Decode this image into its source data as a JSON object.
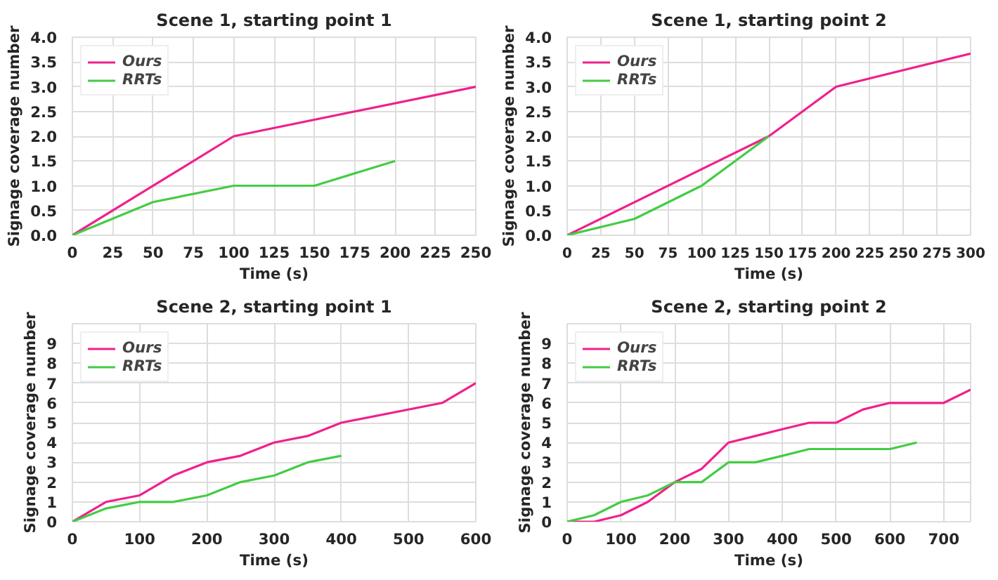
{
  "chart_data": [
    {
      "type": "line",
      "title": "Scene 1, starting point 1",
      "xlabel": "Time (s)",
      "ylabel": "Signage coverage number",
      "xlim": [
        0,
        250
      ],
      "xticks": [
        0,
        25,
        50,
        75,
        100,
        125,
        150,
        175,
        200,
        225,
        250
      ],
      "ylim": [
        0,
        4
      ],
      "yticks": [
        {
          "value": 0,
          "label": "0.0"
        },
        {
          "value": 0.5,
          "label": "0.5"
        },
        {
          "value": 1,
          "label": "1.0"
        },
        {
          "value": 1.5,
          "label": "1.5"
        },
        {
          "value": 2,
          "label": "2.0"
        },
        {
          "value": 2.5,
          "label": "2.5"
        },
        {
          "value": 3,
          "label": "3.0"
        },
        {
          "value": 3.5,
          "label": "3.5"
        },
        {
          "value": 4,
          "label": "4.0"
        }
      ],
      "grid": true,
      "legend": "top left",
      "series": [
        {
          "name": "Ours",
          "color": "#f0208c",
          "x": [
            0,
            100,
            250
          ],
          "values": [
            0,
            2,
            3
          ]
        },
        {
          "name": "RRTs",
          "color": "#44cc44",
          "x": [
            0,
            50,
            100,
            150,
            200
          ],
          "values": [
            0,
            0.67,
            1,
            1,
            1.5
          ]
        }
      ]
    },
    {
      "type": "line",
      "title": "Scene 1, starting point 2",
      "xlabel": "Time (s)",
      "ylabel": "Signage coverage number",
      "xlim": [
        0,
        300
      ],
      "xticks": [
        0,
        25,
        50,
        75,
        100,
        125,
        150,
        175,
        200,
        225,
        250,
        275,
        300
      ],
      "ylim": [
        0,
        4
      ],
      "yticks": [
        {
          "value": 0,
          "label": "0.0"
        },
        {
          "value": 0.5,
          "label": "0.5"
        },
        {
          "value": 1,
          "label": "1.0"
        },
        {
          "value": 1.5,
          "label": "1.5"
        },
        {
          "value": 2,
          "label": "2.0"
        },
        {
          "value": 2.5,
          "label": "2.5"
        },
        {
          "value": 3,
          "label": "3.0"
        },
        {
          "value": 3.5,
          "label": "3.5"
        },
        {
          "value": 4,
          "label": "4.0"
        }
      ],
      "grid": true,
      "legend": "top left",
      "series": [
        {
          "name": "Ours",
          "color": "#f0208c",
          "x": [
            0,
            150,
            200,
            300
          ],
          "values": [
            0,
            2,
            3,
            3.67
          ]
        },
        {
          "name": "RRTs",
          "color": "#44cc44",
          "x": [
            0,
            50,
            100,
            150
          ],
          "values": [
            0,
            0.33,
            1,
            2
          ]
        }
      ]
    },
    {
      "type": "line",
      "title": "Scene 2, starting point 1",
      "xlabel": "Time (s)",
      "ylabel": "Signage coverage number",
      "xlim": [
        0,
        600
      ],
      "xticks": [
        0,
        100,
        200,
        300,
        400,
        500,
        600
      ],
      "ylim": [
        0,
        10
      ],
      "yticks": [
        0,
        1,
        2,
        3,
        4,
        5,
        6,
        7,
        8,
        9
      ],
      "grid": true,
      "legend": "top left",
      "series": [
        {
          "name": "Ours",
          "color": "#f0208c",
          "x": [
            0,
            50,
            100,
            150,
            200,
            250,
            300,
            350,
            400,
            550,
            600
          ],
          "values": [
            0,
            1,
            1.33,
            2.33,
            3,
            3.33,
            4,
            4.33,
            5,
            6,
            7
          ]
        },
        {
          "name": "RRTs",
          "color": "#44cc44",
          "x": [
            0,
            50,
            100,
            150,
            200,
            250,
            300,
            350,
            400
          ],
          "values": [
            0,
            0.67,
            1,
            1,
            1.33,
            2,
            2.33,
            3,
            3.33
          ]
        }
      ]
    },
    {
      "type": "line",
      "title": "Scene 2, starting point 2",
      "xlabel": "Time (s)",
      "ylabel": "Signage coverage number",
      "xlim": [
        0,
        750
      ],
      "xticks": [
        0,
        100,
        200,
        300,
        400,
        500,
        600,
        700
      ],
      "ylim": [
        0,
        10
      ],
      "yticks": [
        0,
        1,
        2,
        3,
        4,
        5,
        6,
        7,
        8,
        9
      ],
      "grid": true,
      "legend": "top left",
      "series": [
        {
          "name": "Ours",
          "color": "#f0208c",
          "x": [
            0,
            50,
            100,
            150,
            200,
            250,
            300,
            350,
            400,
            450,
            500,
            550,
            600,
            700,
            750
          ],
          "values": [
            0,
            0,
            0.33,
            1,
            2,
            2.67,
            4,
            4.33,
            4.67,
            5,
            5,
            5.67,
            6,
            6,
            6.67
          ]
        },
        {
          "name": "RRTs",
          "color": "#44cc44",
          "x": [
            0,
            50,
            100,
            150,
            200,
            250,
            300,
            350,
            400,
            450,
            500,
            550,
            600,
            650
          ],
          "values": [
            0,
            0.33,
            1,
            1.33,
            2,
            2,
            3,
            3,
            3.33,
            3.67,
            3.67,
            3.67,
            3.67,
            4
          ]
        }
      ]
    }
  ]
}
